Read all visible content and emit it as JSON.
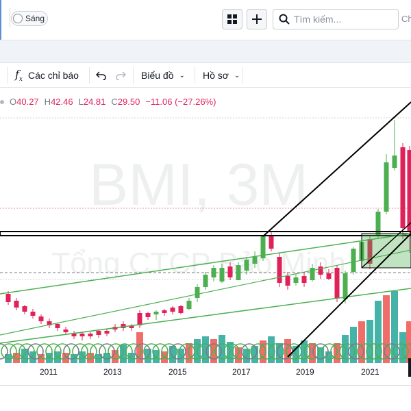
{
  "header": {
    "theme_label": "Sáng",
    "search_placeholder": "Tìm kiếm...",
    "cut_text": "Ch"
  },
  "toolbar": {
    "indicators_label": "Các chỉ báo",
    "chart_type_label": "Biểu đồ",
    "profile_label": "Hồ sơ"
  },
  "legend": {
    "o_key": "O",
    "o_val": "40.27",
    "h_key": "H",
    "h_val": "42.46",
    "l_key": "L",
    "l_val": "24.81",
    "c_key": "C",
    "c_val": "29.50",
    "change": "−11.06 (−27.26%)"
  },
  "watermark": {
    "symbol": "BMI, 3M",
    "company": "Tổng CTCP Bảo Minh"
  },
  "colors": {
    "up": "#4caf50",
    "down": "#e0225a",
    "volume_up": "#26a69a",
    "volume_down": "#ef5350",
    "line": "#000000",
    "channel": "#4caf50"
  },
  "chart_data": {
    "type": "candlestick",
    "symbol": "BMI",
    "interval": "3M",
    "x_ticks": [
      "2011",
      "2013",
      "2015",
      "2017",
      "2019",
      "2021"
    ],
    "last_bar": {
      "open": 40.27,
      "high": 42.46,
      "low": 24.81,
      "close": 29.5,
      "change": -11.06,
      "change_pct": -27.26
    }
  }
}
